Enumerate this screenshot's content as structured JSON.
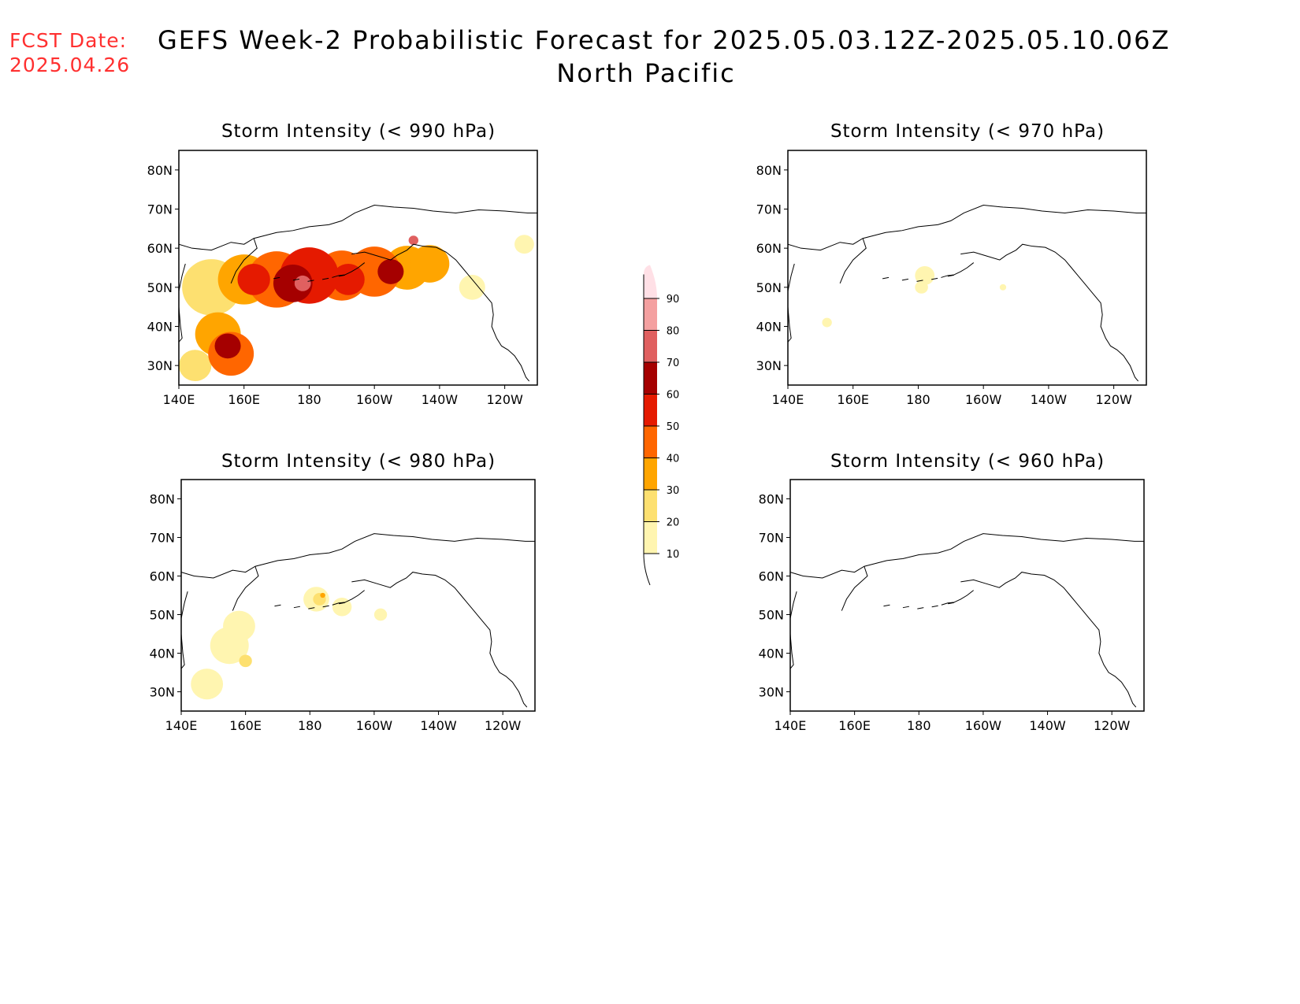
{
  "header": {
    "fcst_label": "FCST Date:",
    "fcst_date": "2025.04.26",
    "title": "GEFS Week-2 Probabilistic Forecast for 2025.05.03.12Z-2025.05.10.06Z",
    "region": "North Pacific"
  },
  "colorbar": {
    "levels": [
      10,
      20,
      30,
      40,
      50,
      60,
      70,
      80,
      90
    ],
    "colors": [
      "#fff5b0",
      "#fde070",
      "#ffa500",
      "#ff6600",
      "#e51a00",
      "#a50000",
      "#e06060",
      "#f4a0a0",
      "#ffe0e6"
    ],
    "labels": [
      "10",
      "20",
      "30",
      "40",
      "50",
      "60",
      "70",
      "80",
      "90"
    ]
  },
  "map_axes": {
    "lon_ticks": [
      "140E",
      "160E",
      "180",
      "160W",
      "140W",
      "120W"
    ],
    "lat_ticks": [
      "80N",
      "70N",
      "60N",
      "50N",
      "40N",
      "30N"
    ]
  },
  "panels": [
    {
      "id": "p990",
      "title": "Storm Intensity (< 990 hPa)",
      "blobs": [
        {
          "lon": 150,
          "lat": 50,
          "r": 9,
          "v": 20
        },
        {
          "lon": 160,
          "lat": 52,
          "r": 8,
          "v": 30
        },
        {
          "lon": 170,
          "lat": 52,
          "r": 9,
          "v": 40
        },
        {
          "lon": 180,
          "lat": 53,
          "r": 9,
          "v": 50
        },
        {
          "lon": 190,
          "lat": 53,
          "r": 8,
          "v": 40
        },
        {
          "lon": 200,
          "lat": 54,
          "r": 8,
          "v": 40
        },
        {
          "lon": 210,
          "lat": 55,
          "r": 7,
          "v": 30
        },
        {
          "lon": 217,
          "lat": 56,
          "r": 6,
          "v": 30
        },
        {
          "lon": 152,
          "lat": 38,
          "r": 7,
          "v": 30
        },
        {
          "lon": 156,
          "lat": 33,
          "r": 7,
          "v": 40
        },
        {
          "lon": 145,
          "lat": 30,
          "r": 5,
          "v": 20
        },
        {
          "lon": 230,
          "lat": 50,
          "r": 4,
          "v": 10
        },
        {
          "lon": 163,
          "lat": 52,
          "r": 5,
          "v": 50
        },
        {
          "lon": 175,
          "lat": 51,
          "r": 6,
          "v": 60
        },
        {
          "lon": 192,
          "lat": 52,
          "r": 5,
          "v": 50
        },
        {
          "lon": 205,
          "lat": 54,
          "r": 4,
          "v": 60
        },
        {
          "lon": 155,
          "lat": 35,
          "r": 4,
          "v": 60
        },
        {
          "lon": 178,
          "lat": 51,
          "r": 2.5,
          "v": 70
        },
        {
          "lon": 212,
          "lat": 62,
          "r": 1.5,
          "v": 70
        },
        {
          "lon": 246,
          "lat": 61,
          "r": 3,
          "v": 10
        }
      ]
    },
    {
      "id": "p970",
      "title": "Storm Intensity (< 970 hPa)",
      "blobs": [
        {
          "lon": 182,
          "lat": 53,
          "r": 3,
          "v": 10
        },
        {
          "lon": 181,
          "lat": 50,
          "r": 2,
          "v": 10
        },
        {
          "lon": 152,
          "lat": 41,
          "r": 1.5,
          "v": 10
        },
        {
          "lon": 206,
          "lat": 50,
          "r": 1,
          "v": 10
        }
      ]
    },
    {
      "id": "p980",
      "title": "Storm Intensity (< 980 hPa)",
      "blobs": [
        {
          "lon": 155,
          "lat": 42,
          "r": 6,
          "v": 10
        },
        {
          "lon": 158,
          "lat": 47,
          "r": 5,
          "v": 10
        },
        {
          "lon": 148,
          "lat": 32,
          "r": 5,
          "v": 10
        },
        {
          "lon": 182,
          "lat": 54,
          "r": 4,
          "v": 10
        },
        {
          "lon": 190,
          "lat": 52,
          "r": 3,
          "v": 10
        },
        {
          "lon": 202,
          "lat": 50,
          "r": 2,
          "v": 10
        },
        {
          "lon": 183,
          "lat": 54,
          "r": 2,
          "v": 20
        },
        {
          "lon": 160,
          "lat": 38,
          "r": 2,
          "v": 20
        },
        {
          "lon": 184,
          "lat": 55,
          "r": 0.8,
          "v": 30
        }
      ]
    },
    {
      "id": "p960",
      "title": "Storm Intensity (< 960 hPa)",
      "blobs": []
    }
  ]
}
